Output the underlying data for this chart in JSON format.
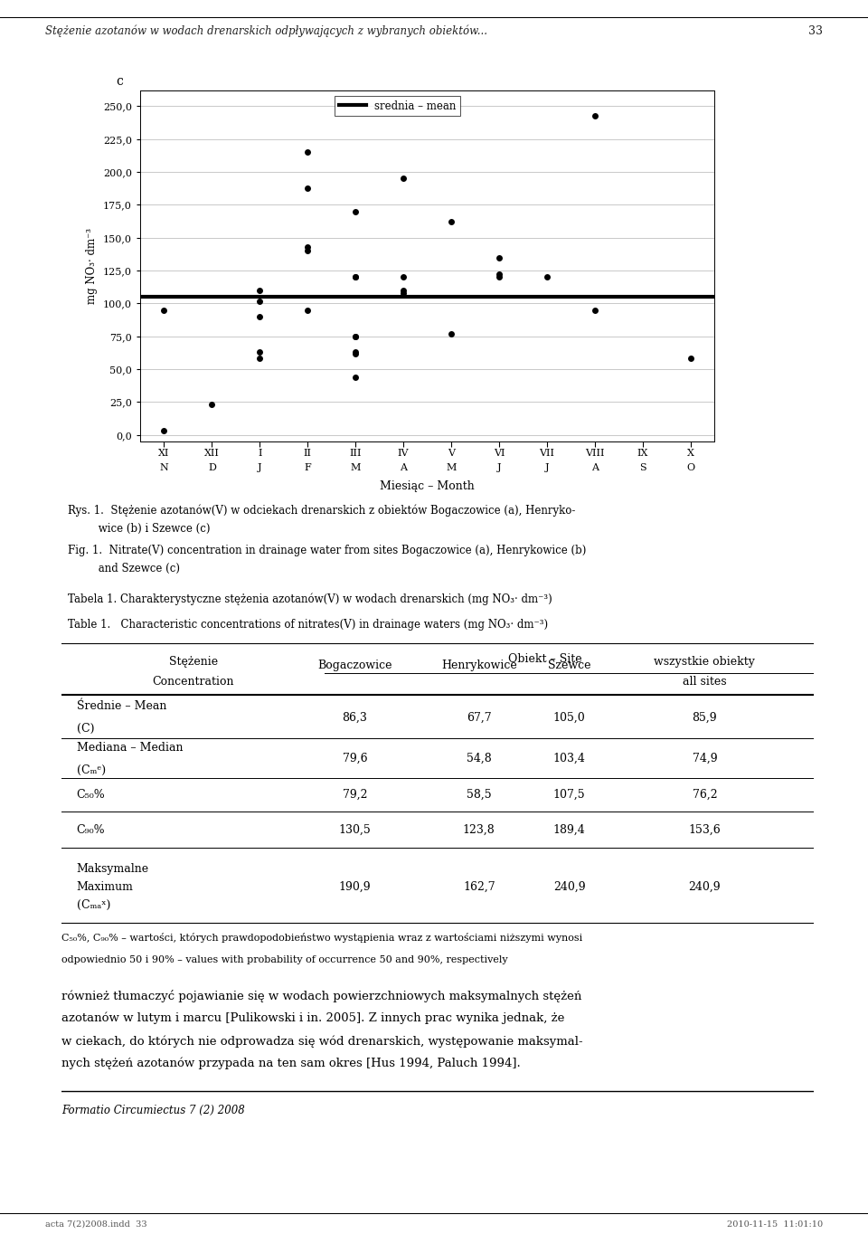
{
  "header_text": "Stężenie azotanów w wodach drenarskich odpływających z wybranych obiektów...",
  "page_number": "33",
  "panel_label": "c",
  "ylabel": "mg NO₃· dm⁻³",
  "xlabel": "Miesiąc – Month",
  "x_tick_top": [
    "XI",
    "XII",
    "I",
    "II",
    "III",
    "IV",
    "V",
    "VI",
    "VII",
    "VIII",
    "IX",
    "X"
  ],
  "x_tick_bot": [
    "N",
    "D",
    "J",
    "F",
    "M",
    "A",
    "M",
    "J",
    "J",
    "A",
    "S",
    "O"
  ],
  "yticks": [
    0.0,
    25.0,
    50.0,
    75.0,
    100.0,
    125.0,
    150.0,
    175.0,
    200.0,
    225.0,
    250.0
  ],
  "mean_line_y": 105.0,
  "legend_label": "srednia – mean",
  "scatter_x": [
    1,
    1,
    2,
    3,
    3,
    3,
    3,
    3,
    4,
    4,
    4,
    4,
    4,
    5,
    5,
    5,
    5,
    5,
    5,
    5,
    5,
    6,
    6,
    6,
    6,
    7,
    7,
    8,
    8,
    8,
    9,
    10,
    12
  ],
  "scatter_y": [
    95,
    3,
    23,
    90,
    63,
    58,
    102,
    110,
    95,
    140,
    143,
    188,
    215,
    75,
    75,
    63,
    62,
    44,
    120,
    120,
    170,
    195,
    120,
    110,
    108,
    77,
    162,
    135,
    122,
    120,
    120,
    95,
    58
  ],
  "scatter_x2": [
    10
  ],
  "scatter_y2": [
    243
  ],
  "fig_caption_pl_1": "Rys. 1.  Stężenie azotanów(V) w odciekach drenarskich z obiektów Bogaczowice (a), Henryko-",
  "fig_caption_pl_2": "         wice (b) i Szewce (c)",
  "fig_caption_en_1": "Fig. 1.  Nitrate(V) concentration in drainage water from sites Bogaczowice (a), Henrykowice (b)",
  "fig_caption_en_2": "         and Szewce (c)",
  "table_title_pl": "Tabela 1. Charakterystyczne stężenia azotanów(V) w wodach drenarskich (mg NO₃· dm⁻³)",
  "table_title_en": "Table 1.   Characteristic concentrations of nitrates(V) in drainage waters (mg NO₃· dm⁻³)",
  "col_headers_top": "Obiekt – Site",
  "col_header_left_1": "Stężenie",
  "col_header_left_2": "Concentration",
  "col_headers": [
    "Bogaczowice",
    "Henrykowice",
    "Szewce",
    "wszystkie obiekty\nall sites"
  ],
  "table_data": [
    [
      "86,3",
      "67,7",
      "105,0",
      "85,9"
    ],
    [
      "79,6",
      "54,8",
      "103,4",
      "74,9"
    ],
    [
      "79,2",
      "58,5",
      "107,5",
      "76,2"
    ],
    [
      "130,5",
      "123,8",
      "189,4",
      "153,6"
    ],
    [
      "190,9",
      "162,7",
      "240,9",
      "240,9"
    ]
  ],
  "footnote_1": "C₅₀%, C₉₀% – wartości, których prawdopodobieństwo wystąpienia wraz z wartościami niższymi wynosi",
  "footnote_2": "odpowiednio 50 i 90% – values with probability of occurrence 50 and 90%, respectively",
  "body_text_1": "również tłumaczyć pojawianie się w wodach powierzchniowych maksymalnych stężeń",
  "body_text_2": "azotanów w lutym i marcu [Pulikowski i in. 2005]. Z innych prac wynika jednak, że",
  "body_text_3": "w ciekach, do których nie odprowadza się wód drenarskich, występowanie maksymal-",
  "body_text_4": "nych stężeń azotanów przypada na ten sam okres [Hus 1994, Paluch 1994].",
  "footer_left": "Formatio Circumiectus 7 (2) 2008",
  "footer_page_info": "acta 7(2)2008.indd  33",
  "footer_date": "2010-11-15  11:01:10",
  "background_color": "#ffffff"
}
